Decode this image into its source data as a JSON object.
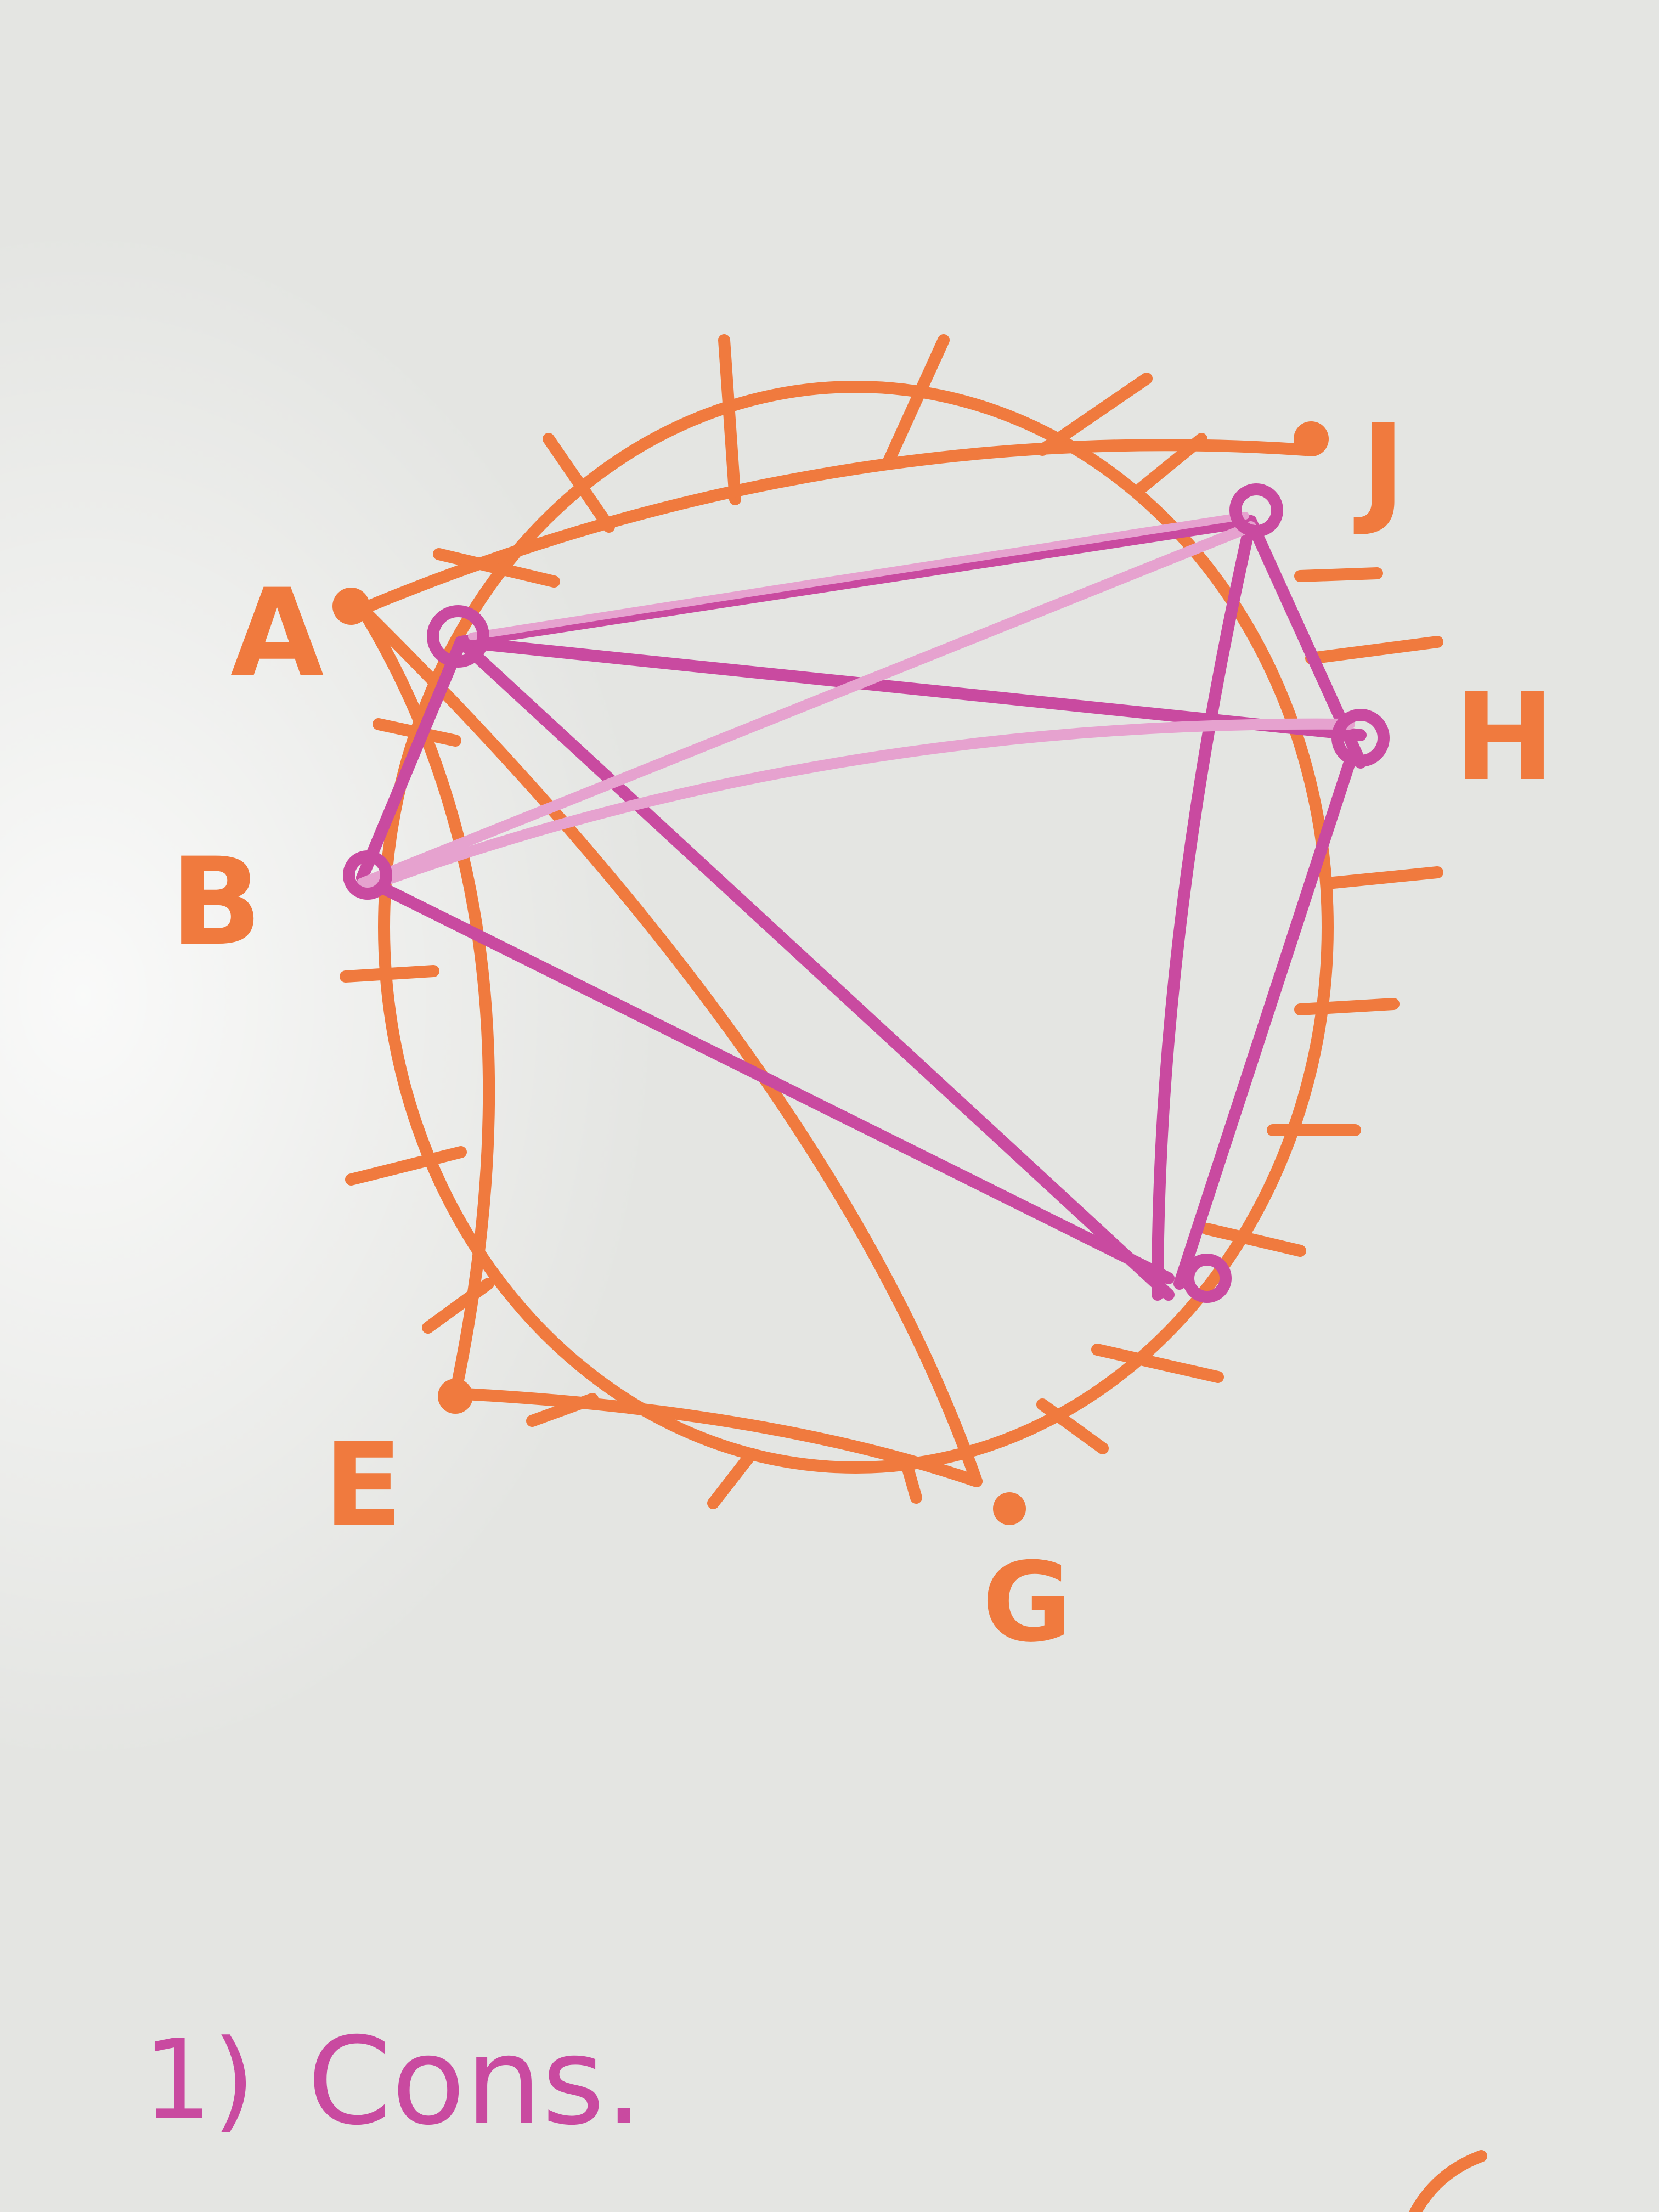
{
  "colors": {
    "board": "#e4e5e2",
    "orange": "#f07a3e",
    "magenta": "#c94aa0",
    "magenta_light": "#e6a2cf"
  },
  "vertices": {
    "A": "A",
    "J": "J",
    "H": "H",
    "B": "B",
    "E": "E",
    "G": "G"
  },
  "note": {
    "number": "1)",
    "text": "Cons."
  }
}
